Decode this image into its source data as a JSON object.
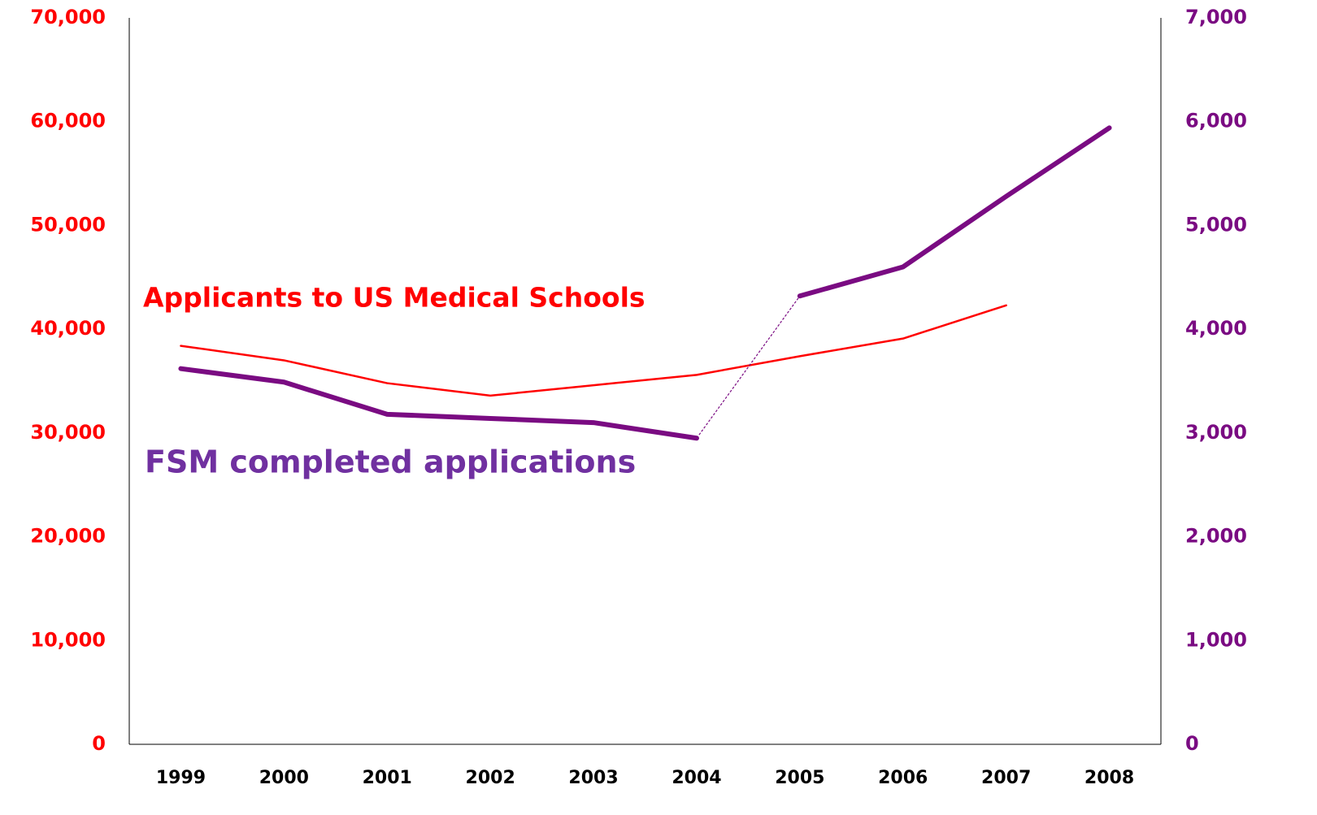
{
  "chart_data": {
    "type": "line",
    "categories": [
      "1999",
      "2000",
      "2001",
      "2002",
      "2003",
      "2004",
      "2005",
      "2006",
      "2007",
      "2008"
    ],
    "series": [
      {
        "name": "Applicants to US Medical Schools",
        "color": "#ff0000",
        "axis": "y",
        "values": [
          38400,
          37000,
          34800,
          33600,
          34600,
          35600,
          37400,
          39100,
          42300,
          null
        ]
      },
      {
        "name": "FSM completed applications",
        "color": "#7a0b82",
        "label_color": "#7030a0",
        "axis": "y2",
        "values": [
          3620,
          3490,
          3180,
          3140,
          3100,
          2950,
          4320,
          4600,
          5280,
          5940
        ],
        "dashed_between": [
          "2004",
          "2005"
        ]
      }
    ],
    "ylim": [
      0,
      70000
    ],
    "yticks": [
      {
        "value": 0,
        "label": "0"
      },
      {
        "value": 10000,
        "label": "10,000"
      },
      {
        "value": 20000,
        "label": "20,000"
      },
      {
        "value": 30000,
        "label": "30,000"
      },
      {
        "value": 40000,
        "label": "40,000"
      },
      {
        "value": 50000,
        "label": "50,000"
      },
      {
        "value": 60000,
        "label": "60,000"
      },
      {
        "value": 70000,
        "label": "70,000"
      }
    ],
    "y2lim": [
      0,
      7000
    ],
    "y2ticks": [
      {
        "value": 0,
        "label": "0"
      },
      {
        "value": 1000,
        "label": "1,000"
      },
      {
        "value": 2000,
        "label": "2,000"
      },
      {
        "value": 3000,
        "label": "3,000"
      },
      {
        "value": 4000,
        "label": "4,000"
      },
      {
        "value": 5000,
        "label": "5,000"
      },
      {
        "value": 6000,
        "label": "6,000"
      },
      {
        "value": 7000,
        "label": "7,000"
      }
    ],
    "grid": false
  }
}
